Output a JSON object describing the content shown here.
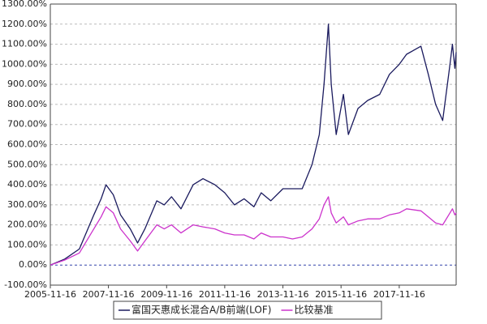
{
  "chart_data": {
    "type": "line",
    "x": [
      "2005-11-16",
      "2006-05-16",
      "2006-11-16",
      "2007-05-16",
      "2007-08-16",
      "2007-10-16",
      "2008-01-16",
      "2008-04-16",
      "2008-08-16",
      "2008-11-16",
      "2009-02-16",
      "2009-07-16",
      "2009-10-16",
      "2010-01-16",
      "2010-05-16",
      "2010-10-16",
      "2011-02-16",
      "2011-07-16",
      "2011-11-16",
      "2012-03-16",
      "2012-07-16",
      "2012-11-16",
      "2013-02-16",
      "2013-06-16",
      "2013-11-16",
      "2014-03-16",
      "2014-07-16",
      "2014-11-16",
      "2015-02-16",
      "2015-04-16",
      "2015-06-10",
      "2015-07-16",
      "2015-09-16",
      "2015-12-16",
      "2016-02-16",
      "2016-06-16",
      "2016-10-16",
      "2017-03-16",
      "2017-07-16",
      "2017-11-16",
      "2018-02-16",
      "2018-08-16",
      "2018-11-16",
      "2019-02-16",
      "2019-05-16",
      "2019-08-16",
      "2019-09-15",
      "2019-10-16",
      "2019-11-01"
    ],
    "series": [
      {
        "name": "富国天惠成长混合A/B前端(LOF)",
        "color": "#1a1a5e",
        "values": [
          0,
          30,
          80,
          250,
          330,
          400,
          350,
          250,
          180,
          110,
          180,
          320,
          300,
          340,
          280,
          400,
          430,
          400,
          360,
          300,
          330,
          290,
          360,
          320,
          380,
          380,
          380,
          500,
          650,
          900,
          1200,
          900,
          650,
          850,
          650,
          780,
          820,
          850,
          950,
          1000,
          1050,
          1090,
          950,
          800,
          720,
          1000,
          1100,
          980,
          1060
        ]
      },
      {
        "name": "比较基准",
        "color": "#cc33cc",
        "values": [
          0,
          25,
          60,
          180,
          240,
          290,
          260,
          180,
          120,
          70,
          120,
          200,
          180,
          200,
          160,
          200,
          190,
          180,
          160,
          150,
          150,
          130,
          160,
          140,
          140,
          130,
          140,
          180,
          230,
          300,
          340,
          260,
          210,
          240,
          200,
          220,
          230,
          230,
          250,
          260,
          280,
          270,
          240,
          210,
          200,
          260,
          280,
          250,
          260
        ]
      }
    ],
    "xlim": [
      "2005-11-16",
      "2019-11-01"
    ],
    "xticks": [
      "2005-11-16",
      "2007-11-16",
      "2009-11-16",
      "2011-11-16",
      "2013-11-16",
      "2015-11-16",
      "2017-11-16"
    ],
    "ylim": [
      -100,
      1300
    ],
    "yticks": [
      {
        "value": -100,
        "label": "-100.00%"
      },
      {
        "value": 0,
        "label": "0.00%"
      },
      {
        "value": 100,
        "label": "100.00%"
      },
      {
        "value": 200,
        "label": "200.00%"
      },
      {
        "value": 300,
        "label": "300.00%"
      },
      {
        "value": 400,
        "label": "400.00%"
      },
      {
        "value": 500,
        "label": "500.00%"
      },
      {
        "value": 600,
        "label": "600.00%"
      },
      {
        "value": 700,
        "label": "700.00%"
      },
      {
        "value": 800,
        "label": "800.00%"
      },
      {
        "value": 900,
        "label": "900.00%"
      },
      {
        "value": 1000,
        "label": "1000.00%"
      },
      {
        "value": 1100,
        "label": "1100.00%"
      },
      {
        "value": 1200,
        "label": "1200.00%"
      },
      {
        "value": 1300,
        "label": "1300.00%"
      }
    ],
    "grid": true
  }
}
